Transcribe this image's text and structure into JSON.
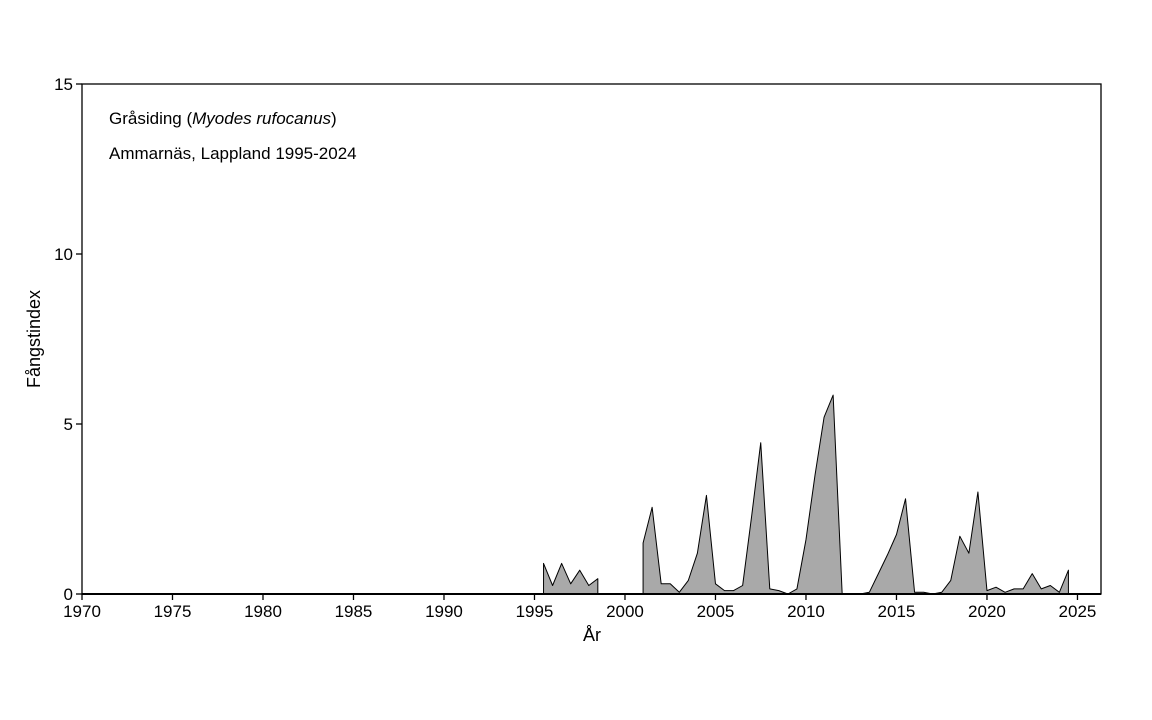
{
  "chart_data": {
    "type": "area",
    "title": "Gråsiding (Myodes rufocanus)",
    "title_parts": {
      "prefix": "Gråsiding (",
      "species": "Myodes rufocanus",
      "suffix": ")"
    },
    "subtitle": "Ammarnäs, Lappland 1995-2024",
    "xlabel": "År",
    "ylabel": "Fångstindex",
    "xlim": [
      1970,
      2026.3
    ],
    "ylim": [
      0,
      15
    ],
    "xticks": [
      1970,
      1975,
      1980,
      1985,
      1990,
      1995,
      2000,
      2005,
      2010,
      2015,
      2020,
      2025
    ],
    "yticks": [
      0,
      5,
      10,
      15
    ],
    "grid": false,
    "fill_color": "#a9a9a9",
    "line_color": "#000000",
    "segments": [
      {
        "x": [
          1995.5,
          1995.5,
          1996.0,
          1996.5,
          1997.0,
          1997.5,
          1998.0,
          1998.5,
          1998.5
        ],
        "y": [
          0,
          0.9,
          0.25,
          0.9,
          0.3,
          0.7,
          0.25,
          0.45,
          0
        ]
      },
      {
        "x": [
          2001.0,
          2001.0,
          2001.5,
          2002.0,
          2002.5,
          2003.0,
          2003.5,
          2004.0,
          2004.5,
          2005.0,
          2005.5,
          2006.0,
          2006.5,
          2007.0,
          2007.5,
          2008.0,
          2008.5,
          2009.0,
          2009.5,
          2010.0,
          2010.5,
          2011.0,
          2011.5,
          2012.0,
          2012.5,
          2013.0,
          2013.5,
          2014.0,
          2014.5,
          2015.0,
          2015.5,
          2016.0,
          2016.5,
          2017.0,
          2017.5,
          2018.0,
          2018.5,
          2019.0,
          2019.5,
          2020.0,
          2020.5,
          2021.0,
          2021.5,
          2022.0,
          2022.5,
          2023.0,
          2023.5,
          2024.0,
          2024.5,
          2024.5
        ],
        "y": [
          0,
          1.5,
          2.55,
          0.3,
          0.3,
          0.05,
          0.4,
          1.2,
          2.9,
          0.3,
          0.1,
          0.1,
          0.25,
          2.3,
          4.45,
          0.15,
          0.1,
          0.0,
          0.15,
          1.6,
          3.5,
          5.2,
          5.85,
          0.0,
          0.0,
          0.0,
          0.05,
          0.6,
          1.15,
          1.75,
          2.8,
          0.05,
          0.05,
          0.0,
          0.05,
          0.4,
          1.7,
          1.2,
          3.0,
          0.1,
          0.2,
          0.05,
          0.15,
          0.15,
          0.6,
          0.15,
          0.25,
          0.05,
          0.7,
          0
        ]
      }
    ]
  }
}
